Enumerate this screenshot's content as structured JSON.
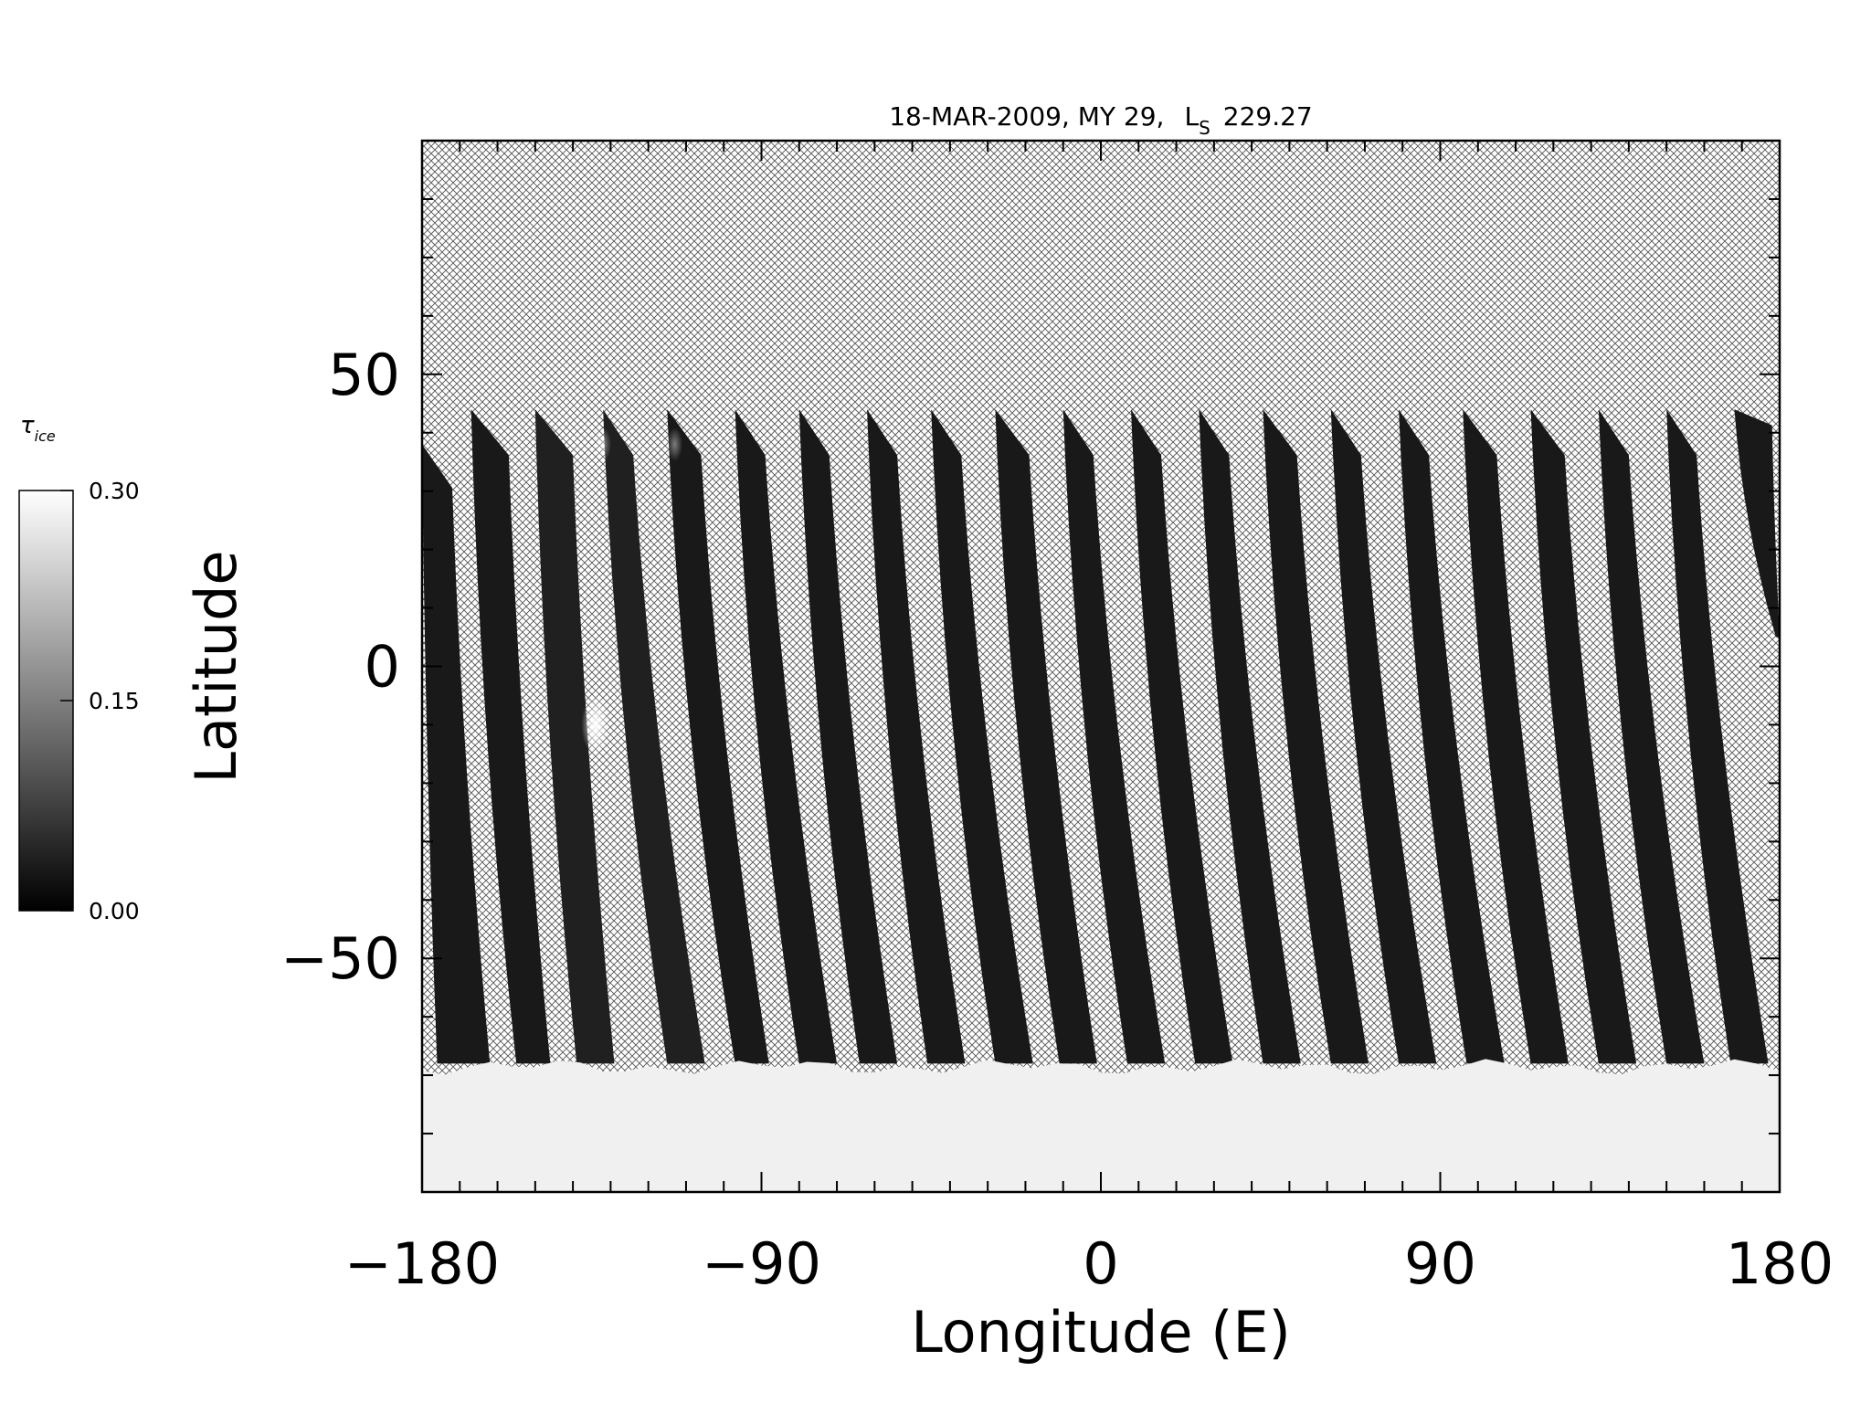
{
  "chart_data": {
    "type": "heatmap",
    "title": {
      "date": "18-MAR-2009, MY 29,",
      "ls_symbol": "L",
      "ls_sub": "S",
      "ls_value": "229.27"
    },
    "xlabel": "Longitude (E)",
    "ylabel": "Latitude",
    "xlim": [
      -180,
      180
    ],
    "ylim": [
      -90,
      90
    ],
    "x_ticks": [
      {
        "value": -180,
        "label": "−180"
      },
      {
        "value": -90,
        "label": "−90"
      },
      {
        "value": 0,
        "label": "0"
      },
      {
        "value": 90,
        "label": "90"
      },
      {
        "value": 180,
        "label": "180"
      }
    ],
    "y_ticks": [
      {
        "value": 50,
        "label": "50"
      },
      {
        "value": 0,
        "label": "0"
      },
      {
        "value": -50,
        "label": "−50"
      }
    ],
    "x_minor_step": 10,
    "y_minor_step": 10,
    "colorbar": {
      "label": "τ",
      "label_sub": "ice",
      "min": 0.0,
      "max": 0.3,
      "ticks": [
        {
          "value": 0.3,
          "label": "0.30"
        },
        {
          "value": 0.15,
          "label": "0.15"
        },
        {
          "value": 0.0,
          "label": "0.00"
        }
      ],
      "colors": [
        "#000000",
        "#ffffff"
      ]
    },
    "no_data_fill": "crosshatch",
    "polar_ice_region": {
      "lat_top": -68,
      "value": 0.29
    },
    "swaths": [
      {
        "lon_top_left": -180,
        "lon_top_right": -172,
        "lat_top": 38,
        "lon_bottom_left": -176,
        "lon_bottom_right": -162,
        "lat_bottom": -68,
        "value": 0.01
      },
      {
        "lon_top_left": -167,
        "lon_top_right": -157,
        "lat_top": 44,
        "lon_bottom_left": -155,
        "lon_bottom_right": -146,
        "lat_bottom": -68,
        "value": 0.01
      },
      {
        "lon_top_left": -150,
        "lon_top_right": -140,
        "lat_top": 44,
        "lon_bottom_left": -139,
        "lon_bottom_right": -129,
        "lat_bottom": -68,
        "value": 0.02
      },
      {
        "lon_top_left": -132,
        "lon_top_right": -124,
        "lat_top": 44,
        "lon_bottom_left": -115,
        "lon_bottom_right": -105,
        "lat_bottom": -68,
        "value": 0.02
      },
      {
        "lon_top_left": -115,
        "lon_top_right": -106,
        "lat_top": 44,
        "lon_bottom_left": -97,
        "lon_bottom_right": -88,
        "lat_bottom": -68,
        "value": 0.01
      },
      {
        "lon_top_left": -97,
        "lon_top_right": -89,
        "lat_top": 44,
        "lon_bottom_left": -80,
        "lon_bottom_right": -70,
        "lat_bottom": -68,
        "value": 0.01
      },
      {
        "lon_top_left": -80,
        "lon_top_right": -72,
        "lat_top": 44,
        "lon_bottom_left": -64,
        "lon_bottom_right": -54,
        "lat_bottom": -68,
        "value": 0.01
      },
      {
        "lon_top_left": -62,
        "lon_top_right": -54,
        "lat_top": 44,
        "lon_bottom_left": -46,
        "lon_bottom_right": -36,
        "lat_bottom": -68,
        "value": 0.01
      },
      {
        "lon_top_left": -45,
        "lon_top_right": -37,
        "lat_top": 44,
        "lon_bottom_left": -28,
        "lon_bottom_right": -18,
        "lat_bottom": -68,
        "value": 0.01
      },
      {
        "lon_top_left": -28,
        "lon_top_right": -19,
        "lat_top": 44,
        "lon_bottom_left": -11,
        "lon_bottom_right": -1,
        "lat_bottom": -68,
        "value": 0.01
      },
      {
        "lon_top_left": -10,
        "lon_top_right": -2,
        "lat_top": 44,
        "lon_bottom_left": 7,
        "lon_bottom_right": 17,
        "lat_bottom": -68,
        "value": 0.01
      },
      {
        "lon_top_left": 8,
        "lon_top_right": 16,
        "lat_top": 44,
        "lon_bottom_left": 25,
        "lon_bottom_right": 35,
        "lat_bottom": -68,
        "value": 0.01
      },
      {
        "lon_top_left": 26,
        "lon_top_right": 34,
        "lat_top": 44,
        "lon_bottom_left": 43,
        "lon_bottom_right": 53,
        "lat_bottom": -68,
        "value": 0.01
      },
      {
        "lon_top_left": 43,
        "lon_top_right": 52,
        "lat_top": 44,
        "lon_bottom_left": 61,
        "lon_bottom_right": 71,
        "lat_bottom": -68,
        "value": 0.01
      },
      {
        "lon_top_left": 61,
        "lon_top_right": 69,
        "lat_top": 44,
        "lon_bottom_left": 79,
        "lon_bottom_right": 89,
        "lat_bottom": -68,
        "value": 0.01
      },
      {
        "lon_top_left": 79,
        "lon_top_right": 87,
        "lat_top": 44,
        "lon_bottom_left": 97,
        "lon_bottom_right": 107,
        "lat_bottom": -68,
        "value": 0.01
      },
      {
        "lon_top_left": 96,
        "lon_top_right": 105,
        "lat_top": 44,
        "lon_bottom_left": 114,
        "lon_bottom_right": 124,
        "lat_bottom": -68,
        "value": 0.01
      },
      {
        "lon_top_left": 114,
        "lon_top_right": 123,
        "lat_top": 44,
        "lon_bottom_left": 132,
        "lon_bottom_right": 142,
        "lat_bottom": -68,
        "value": 0.01
      },
      {
        "lon_top_left": 132,
        "lon_top_right": 140,
        "lat_top": 44,
        "lon_bottom_left": 150,
        "lon_bottom_right": 160,
        "lat_bottom": -68,
        "value": 0.01
      },
      {
        "lon_top_left": 150,
        "lon_top_right": 158,
        "lat_top": 44,
        "lon_bottom_left": 167,
        "lon_bottom_right": 177,
        "lat_bottom": -68,
        "value": 0.01
      },
      {
        "lon_top_left": 168,
        "lon_top_right": 178,
        "lat_top": 44,
        "lon_bottom_left": 179,
        "lon_bottom_right": 180,
        "lat_bottom": 5,
        "value": 0.01
      }
    ],
    "bright_spots": [
      {
        "lon": -134,
        "lat": -10,
        "value": 0.26
      },
      {
        "lon": -132,
        "lat": 38,
        "value": 0.08
      },
      {
        "lon": -113,
        "lat": 38,
        "value": 0.07
      }
    ]
  }
}
